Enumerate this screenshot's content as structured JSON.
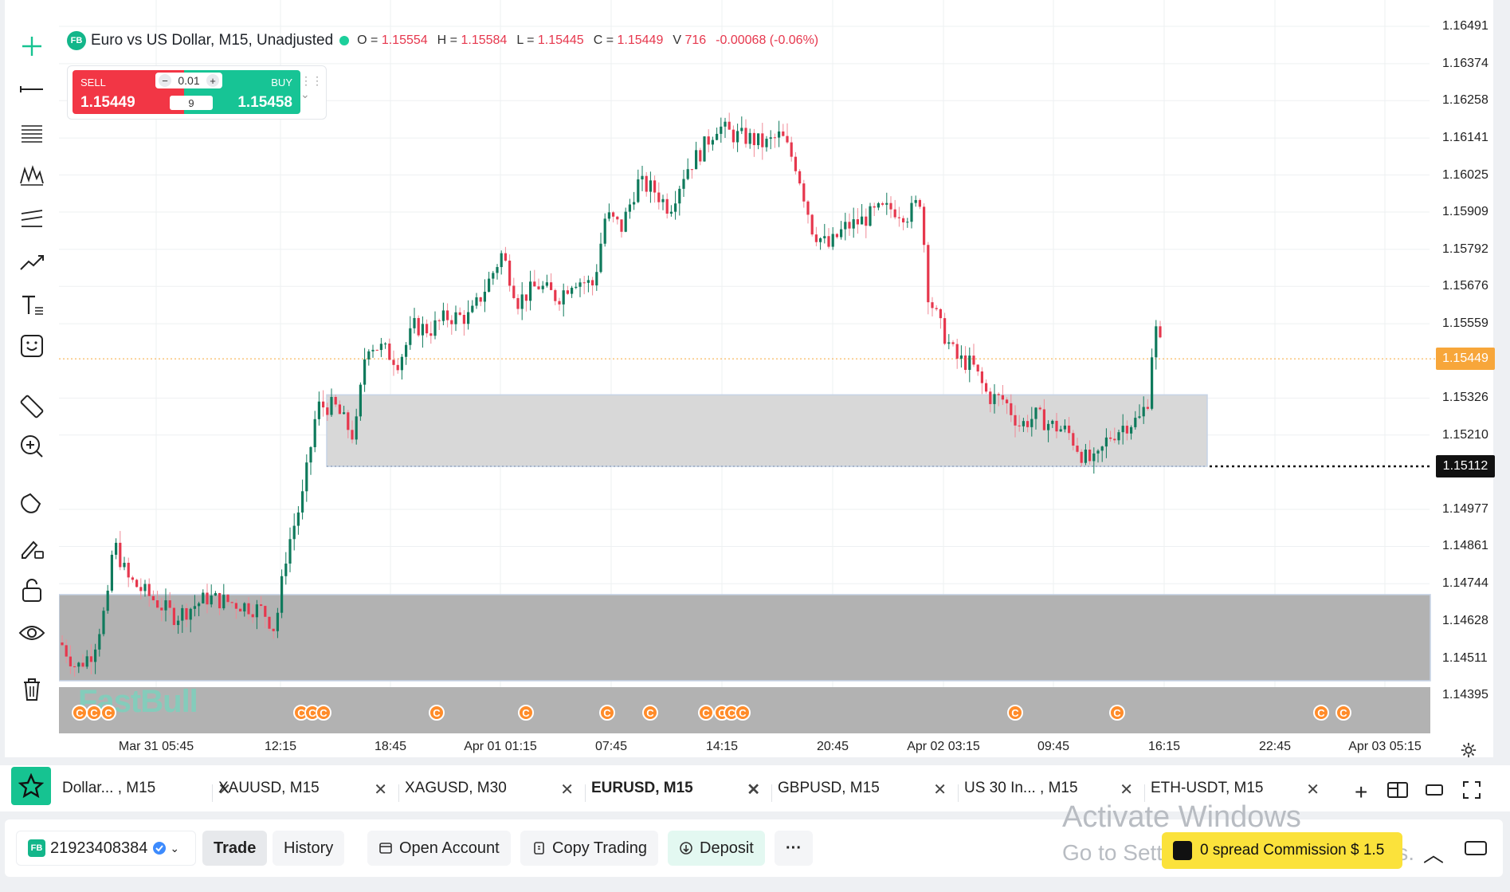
{
  "symbol": {
    "badge": "FB",
    "title": "Euro vs US Dollar, M15, Unadjusted",
    "open_label": "O =",
    "open": "1.15554",
    "high_label": "H =",
    "high": "1.15584",
    "low_label": "L =",
    "low": "1.15445",
    "close_label": "C =",
    "close": "1.15449",
    "volume_label": "V",
    "volume": "716",
    "change": "-0.00068 (-0.06%)"
  },
  "trade_widget": {
    "sell_label": "SELL",
    "sell_price": "1.15449",
    "buy_label": "BUY",
    "buy_price": "1.15458",
    "lot_size": "0.01",
    "spread": "9",
    "minus": "−",
    "plus": "+"
  },
  "y_axis": {
    "labels": [
      "1.16491",
      "1.16374",
      "1.16258",
      "1.16141",
      "1.16025",
      "1.15909",
      "1.15792",
      "1.15676",
      "1.15559",
      "1.15326",
      "1.15210",
      "1.14977",
      "1.14861",
      "1.14744",
      "1.14628",
      "1.14511",
      "1.14395"
    ],
    "current_price": "1.15449",
    "marker_price": "1.15112"
  },
  "x_axis": {
    "labels": [
      "Mar 31 05:45",
      "12:15",
      "18:45",
      "Apr 01 01:15",
      "07:45",
      "14:15",
      "20:45",
      "Apr 02 03:15",
      "09:45",
      "16:15",
      "22:45",
      "Apr 03 05:15"
    ]
  },
  "chart_data": {
    "type": "candlestick",
    "ylim": [
      1.14334,
      1.16553
    ],
    "zones": [
      {
        "kind": "support-zone-light",
        "from": 1.15112,
        "to": 1.15336
      },
      {
        "kind": "support-zone-dark",
        "from": 1.1444,
        "to": 1.1471
      }
    ],
    "colors": {
      "up": "#0f7a5c",
      "down": "#e6374d"
    },
    "event_marker_glyph": "C",
    "candles_note": "EURUSD M15 candles"
  },
  "watermark_brand": "FastBull",
  "tabs": [
    {
      "label": "Dollar... , M15",
      "close": "✕"
    },
    {
      "label": "XAUUSD, M15",
      "close": "✕"
    },
    {
      "label": "XAGUSD, M30",
      "close": "✕"
    },
    {
      "label": "EURUSD, M15",
      "close": "✕"
    },
    {
      "label": "GBPUSD, M15",
      "close": "✕"
    },
    {
      "label": "US 30 In... , M15",
      "close": "✕"
    },
    {
      "label": "ETH-USDT, M15",
      "close": "✕"
    }
  ],
  "bottom": {
    "account_badge": "FB",
    "account": "21923408384",
    "trade": "Trade",
    "history": "History",
    "open_account": "Open Account",
    "copy_trading": "Copy Trading",
    "deposit": "Deposit",
    "more": "···",
    "promo": "0 spread Commission $ 1.5"
  },
  "os_watermark": {
    "line1": "Activate Windows",
    "line2": "Go to Settings to activate Windows."
  },
  "colors": {
    "accent": "#16c391",
    "sell": "#f23645",
    "buy": "#17c495",
    "price_tag": "#f7a63a"
  }
}
